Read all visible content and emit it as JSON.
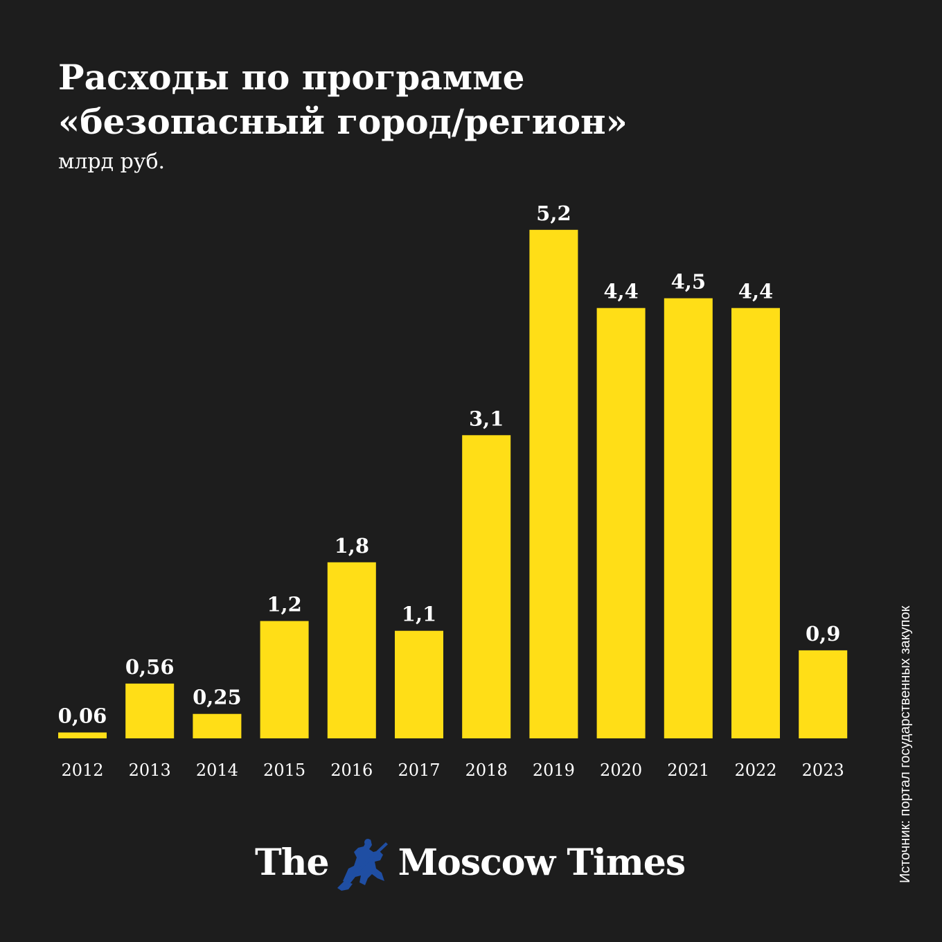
{
  "header": {
    "title_line1": "Расходы по программе",
    "title_line2": "«безопасный город/регион»",
    "subtitle": "млрд руб."
  },
  "source": "Источник: портал государственных закупок",
  "logo": {
    "left_text": "The",
    "right_text": "Moscow Times",
    "emblem_color": "#1f4ea3"
  },
  "colors": {
    "background": "#1d1d1d",
    "bar": "#ffde17",
    "text": "#ffffff"
  },
  "chart_data": {
    "type": "bar",
    "categories": [
      "2012",
      "2013",
      "2014",
      "2015",
      "2016",
      "2017",
      "2018",
      "2019",
      "2020",
      "2021",
      "2022",
      "2023"
    ],
    "values": [
      0.06,
      0.56,
      0.25,
      1.2,
      1.8,
      1.1,
      3.1,
      5.2,
      4.4,
      4.5,
      4.4,
      0.9
    ],
    "value_labels": [
      "0,06",
      "0,56",
      "0,25",
      "1,2",
      "1,8",
      "1,1",
      "3,1",
      "5,2",
      "4,4",
      "4,5",
      "4,4",
      "0,9"
    ],
    "title": "Расходы по программе «безопасный город/регион»",
    "subtitle": "млрд руб.",
    "xlabel": "",
    "ylabel": "",
    "ylim": [
      0,
      5.2
    ],
    "grid": false,
    "legend": "none"
  }
}
